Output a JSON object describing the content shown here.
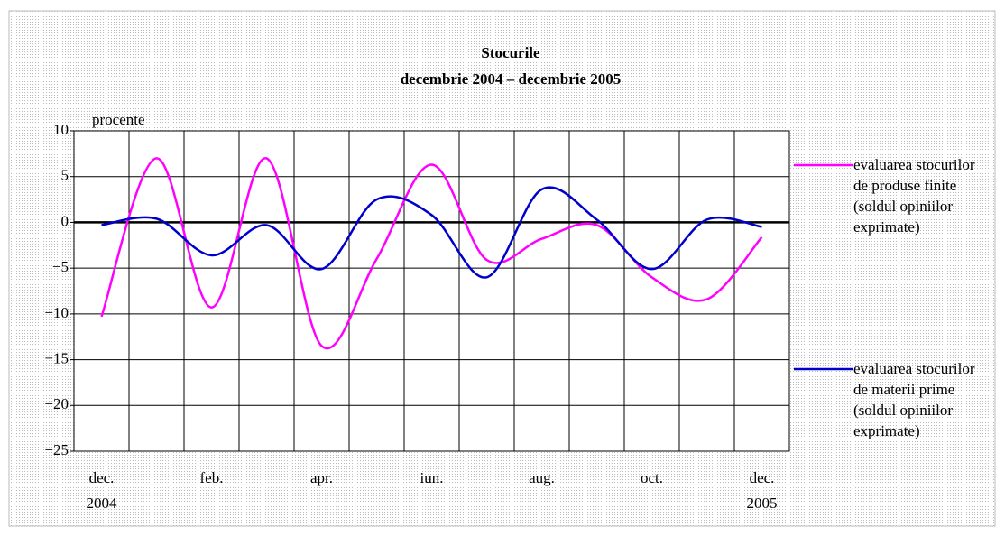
{
  "chart_data": {
    "type": "line",
    "title": "Stocurile",
    "subtitle": "decembrie 2004 – decembrie 2005",
    "y_label": "procente",
    "categories": [
      "dec.\n2004",
      null,
      "feb.",
      null,
      "apr.",
      null,
      "iun.",
      null,
      "aug.",
      null,
      "oct.",
      null,
      "dec.\n2005"
    ],
    "series": [
      {
        "name": "evaluarea stocurilor de produse finite (soldul opiniilor exprimate)",
        "color": "#ff00ff",
        "values": [
          -10.3,
          7,
          -9.3,
          7,
          -13.5,
          -4,
          6.3,
          -4.1,
          -1.8,
          -0.3,
          -6,
          -8.4,
          -1.6
        ]
      },
      {
        "name": "evaluarea stocurilor de materii prime (soldul opiniilor exprimate)",
        "color": "#0000cc",
        "values": [
          -0.3,
          0.4,
          -3.6,
          -0.3,
          -5.1,
          2.5,
          0.8,
          -6,
          3.6,
          0.3,
          -5.1,
          0.3,
          -0.5
        ]
      }
    ],
    "ylim": [
      -25,
      10
    ],
    "yticks": [
      {
        "value": -25,
        "label": "−25"
      },
      {
        "value": -20,
        "label": "−20"
      },
      {
        "value": -15,
        "label": "−15"
      },
      {
        "value": -10,
        "label": "−10"
      },
      {
        "value": -5,
        "label": "−5"
      },
      0,
      5,
      10
    ],
    "grid": true,
    "legend": "right"
  }
}
